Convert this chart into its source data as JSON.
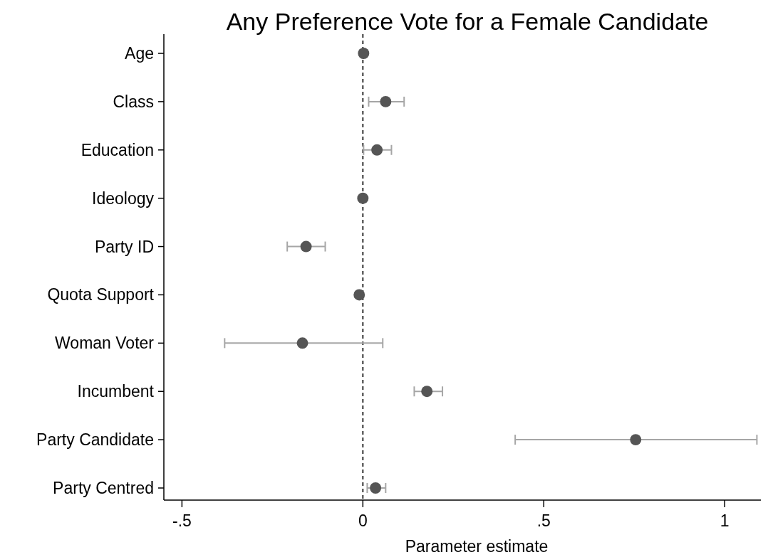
{
  "chart_data": {
    "type": "scatter",
    "orientation": "horizontal",
    "title": "Any Preference Vote for a Female Candidate",
    "xlabel": "Parameter estimate",
    "categories": [
      "Age",
      "Class",
      "Education",
      "Ideology",
      "Party ID",
      "Quota Support",
      "Woman Voter",
      "Incumbent",
      "Party Candidate",
      "Party Centred"
    ],
    "series": [
      {
        "color": "#555555",
        "values": [
          0.002,
          0.063,
          0.039,
          0,
          -0.157,
          -0.01,
          -0.167,
          0.177,
          0.754,
          0.035
        ],
        "errors": [
          [
            -0.003,
            0.007
          ],
          [
            0.016,
            0.114
          ],
          [
            0.002,
            0.079
          ],
          null,
          [
            -0.209,
            -0.104
          ],
          null,
          [
            -0.382,
            0.055
          ],
          [
            0.142,
            0.22
          ],
          [
            0.421,
            1.089
          ],
          [
            0.012,
            0.063
          ]
        ]
      }
    ],
    "marker": "circle",
    "xlim": [
      -0.55,
      1.1
    ],
    "xticks": [
      {
        "value": -0.5,
        "label": "-.5"
      },
      0,
      {
        "value": 0.5,
        "label": ".5"
      },
      1
    ],
    "ref_lines": [
      {
        "axis": "x",
        "value": 0,
        "line_style": "dashed",
        "color": "#333333"
      }
    ],
    "grid": false
  }
}
